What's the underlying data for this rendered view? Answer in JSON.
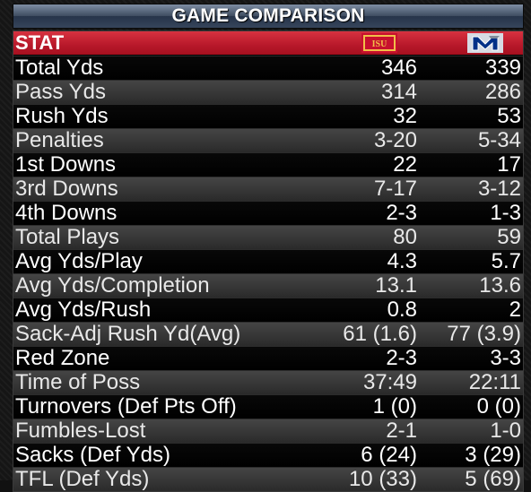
{
  "title": "GAME COMPARISON",
  "header": {
    "stat_label": "STAT",
    "home_logo": "iowa-state-logo",
    "away_logo": "memphis-tigers-logo"
  },
  "colors": {
    "header_red": "#c41f30",
    "title_blue": "#3e4c60",
    "iowa_state_red": "#c8102e",
    "iowa_state_gold": "#f1be48",
    "memphis_blue": "#003087"
  },
  "rows": [
    {
      "label": "Total Yds",
      "home": "346",
      "away": "339"
    },
    {
      "label": "Pass Yds",
      "home": "314",
      "away": "286"
    },
    {
      "label": "Rush Yds",
      "home": "32",
      "away": "53"
    },
    {
      "label": "Penalties",
      "home": "3-20",
      "away": "5-34"
    },
    {
      "label": "1st Downs",
      "home": "22",
      "away": "17"
    },
    {
      "label": "3rd Downs",
      "home": "7-17",
      "away": "3-12"
    },
    {
      "label": "4th Downs",
      "home": "2-3",
      "away": "1-3"
    },
    {
      "label": "Total Plays",
      "home": "80",
      "away": "59"
    },
    {
      "label": "Avg Yds/Play",
      "home": "4.3",
      "away": "5.7"
    },
    {
      "label": "Avg Yds/Completion",
      "home": "13.1",
      "away": "13.6"
    },
    {
      "label": "Avg Yds/Rush",
      "home": "0.8",
      "away": "2"
    },
    {
      "label": "Sack-Adj Rush Yd(Avg)",
      "home": "61 (1.6)",
      "away": "77 (3.9)"
    },
    {
      "label": "Red Zone",
      "home": "2-3",
      "away": "3-3"
    },
    {
      "label": "Time of Poss",
      "home": "37:49",
      "away": "22:11"
    },
    {
      "label": "Turnovers (Def Pts Off)",
      "home": "1 (0)",
      "away": "0 (0)"
    },
    {
      "label": "Fumbles-Lost",
      "home": "2-1",
      "away": "1-0"
    },
    {
      "label": "Sacks (Def Yds)",
      "home": "6 (24)",
      "away": "3 (29)"
    },
    {
      "label": "TFL (Def Yds)",
      "home": "10 (33)",
      "away": "5 (69)"
    }
  ]
}
